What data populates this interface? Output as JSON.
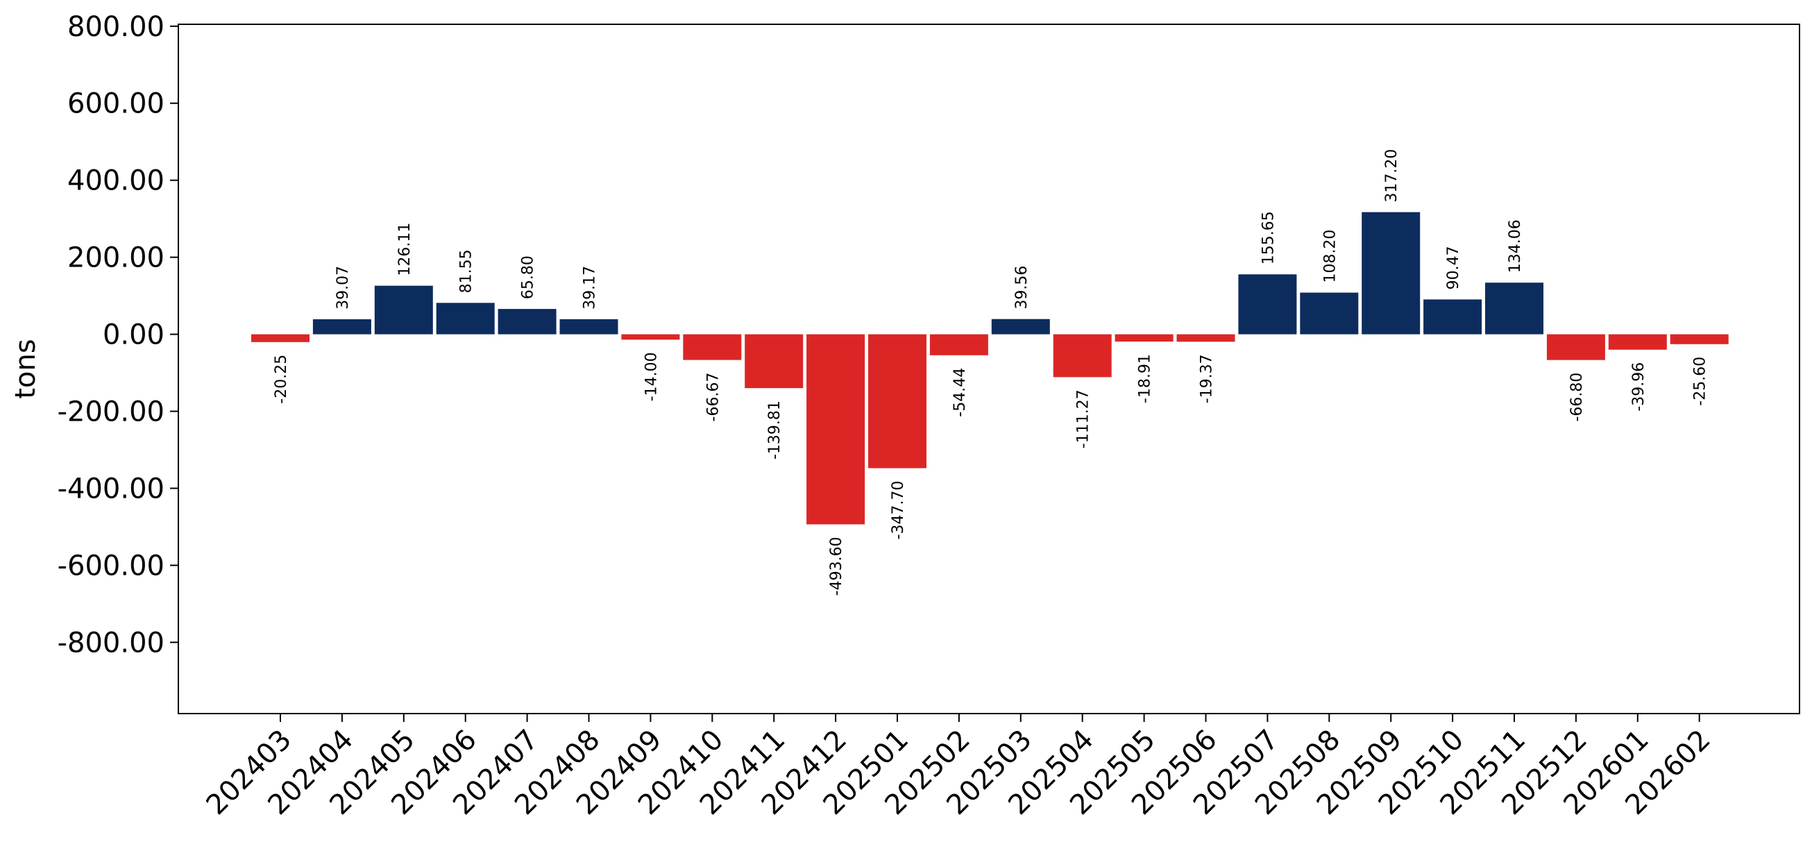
{
  "chart_data": {
    "type": "bar",
    "title": "",
    "xlabel": "",
    "ylabel": "tons",
    "ylim": [
      -985,
      805
    ],
    "yticks": [
      -800,
      -600,
      -400,
      -200,
      0,
      200,
      400,
      600,
      800
    ],
    "y_tick_format": "2 decimals",
    "categories": [
      "202403",
      "202404",
      "202405",
      "202406",
      "202407",
      "202408",
      "202409",
      "202410",
      "202411",
      "202412",
      "202501",
      "202502",
      "202503",
      "202504",
      "202505",
      "202506",
      "202507",
      "202508",
      "202509",
      "202510",
      "202511",
      "202512",
      "202601",
      "202602"
    ],
    "values": [
      -20.25,
      39.07,
      126.11,
      81.55,
      65.8,
      39.17,
      -14.0,
      -66.67,
      -139.81,
      -493.6,
      -347.7,
      -54.44,
      39.56,
      -111.27,
      -18.91,
      -19.37,
      155.65,
      108.2,
      317.2,
      90.47,
      134.06,
      -66.8,
      -39.96,
      -25.6
    ],
    "data_labels": [
      "-20.25",
      "39.07",
      "126.11",
      "81.55",
      "65.80",
      "39.17",
      "-14.00",
      "-66.67",
      "-139.81",
      "-493.60",
      "-347.70",
      "-54.44",
      "39.56",
      "-111.27",
      "-18.91",
      "-19.37",
      "155.65",
      "108.20",
      "317.20",
      "90.47",
      "134.06",
      "-66.80",
      "-39.96",
      "-25.60"
    ],
    "grid": false,
    "legend": "none",
    "colors": {
      "positive": "#0d2c5e",
      "negative": "#dc2626",
      "axis": "#000000"
    }
  }
}
